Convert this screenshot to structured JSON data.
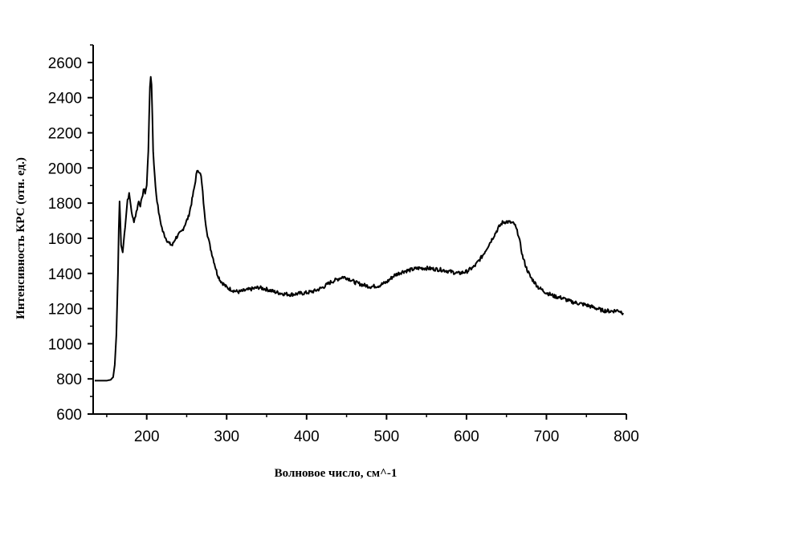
{
  "chart_data": {
    "type": "line",
    "title": "",
    "xlabel": "Волновое число, см^-1",
    "ylabel": "Интенсивность КРС (отн. ед.)",
    "xlim": [
      133,
      800
    ],
    "ylim": [
      600,
      2700
    ],
    "x_ticks": [
      200,
      300,
      400,
      500,
      600,
      700,
      800
    ],
    "y_ticks": [
      600,
      800,
      1000,
      1200,
      1400,
      1600,
      1800,
      2000,
      2200,
      2400,
      2600
    ],
    "x_tick_labels": [
      "200",
      "300",
      "400",
      "500",
      "600",
      "700",
      "800"
    ],
    "y_tick_labels": [
      "600",
      "800",
      "1000",
      "1200",
      "1400",
      "1600",
      "1800",
      "2000",
      "2200",
      "2400",
      "2600"
    ],
    "grid": false,
    "legend": "none",
    "line_color": "#000000",
    "series": [
      {
        "x": [
          135,
          145,
          150,
          155,
          158,
          160,
          162,
          164,
          165,
          166,
          167,
          168,
          170,
          172,
          174,
          176,
          178,
          180,
          182,
          184,
          186,
          188,
          190,
          192,
          194,
          196,
          198,
          200,
          202,
          203,
          204,
          205,
          206,
          207,
          208,
          210,
          212,
          214,
          216,
          218,
          220,
          224,
          228,
          232,
          236,
          240,
          244,
          248,
          252,
          256,
          260,
          262,
          264,
          266,
          268,
          270,
          272,
          274,
          276,
          278,
          280,
          284,
          288,
          292,
          296,
          300,
          305,
          310,
          315,
          320,
          330,
          340,
          350,
          360,
          370,
          380,
          390,
          400,
          410,
          420,
          430,
          440,
          445,
          450,
          455,
          460,
          470,
          480,
          490,
          500,
          510,
          520,
          530,
          540,
          550,
          560,
          570,
          580,
          590,
          600,
          610,
          620,
          630,
          640,
          645,
          650,
          655,
          660,
          665,
          670,
          675,
          680,
          690,
          700,
          710,
          720,
          730,
          740,
          750,
          760,
          770,
          780,
          790,
          796
        ],
        "y": [
          790,
          790,
          790,
          795,
          810,
          880,
          1050,
          1400,
          1650,
          1810,
          1700,
          1560,
          1520,
          1620,
          1720,
          1820,
          1850,
          1790,
          1720,
          1700,
          1730,
          1770,
          1810,
          1790,
          1820,
          1880,
          1860,
          1900,
          2100,
          2300,
          2450,
          2520,
          2480,
          2300,
          2100,
          1950,
          1850,
          1780,
          1720,
          1680,
          1640,
          1600,
          1570,
          1560,
          1600,
          1620,
          1640,
          1680,
          1720,
          1800,
          1900,
          1960,
          1990,
          1980,
          1950,
          1860,
          1750,
          1680,
          1620,
          1580,
          1540,
          1470,
          1400,
          1360,
          1340,
          1320,
          1310,
          1300,
          1295,
          1300,
          1310,
          1320,
          1310,
          1295,
          1285,
          1280,
          1285,
          1290,
          1300,
          1320,
          1350,
          1370,
          1380,
          1375,
          1365,
          1350,
          1335,
          1325,
          1330,
          1350,
          1390,
          1410,
          1420,
          1430,
          1430,
          1425,
          1420,
          1410,
          1400,
          1410,
          1440,
          1500,
          1580,
          1660,
          1690,
          1695,
          1690,
          1680,
          1620,
          1500,
          1430,
          1380,
          1320,
          1290,
          1270,
          1260,
          1240,
          1230,
          1220,
          1205,
          1190,
          1185,
          1190,
          1175
        ]
      }
    ]
  }
}
